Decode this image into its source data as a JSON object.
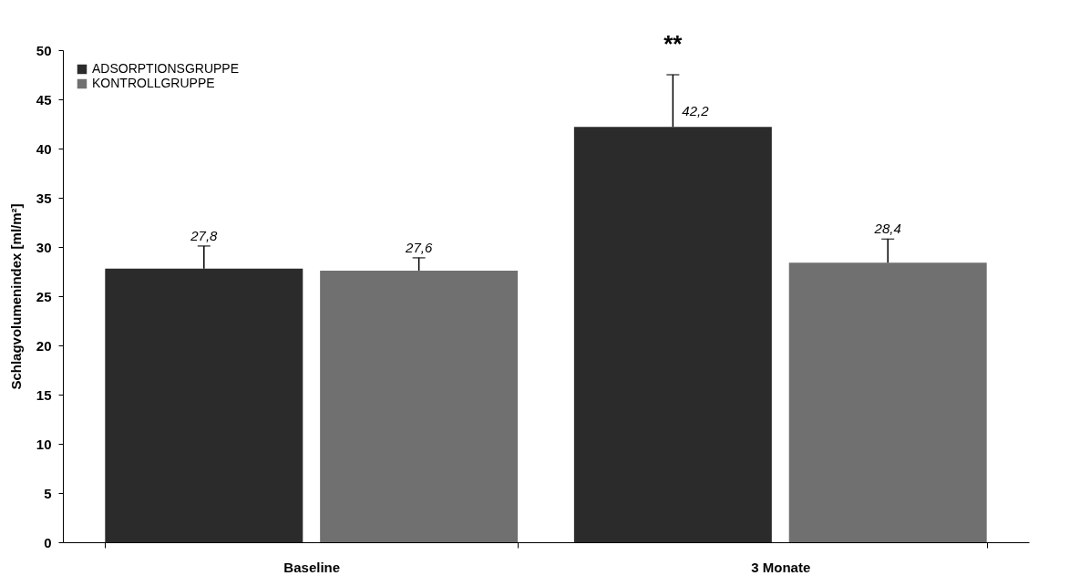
{
  "chart_data": {
    "type": "bar",
    "ylabel": "Schlagvolumenindex [ml/m²]",
    "categories": [
      "Baseline",
      "3 Monate"
    ],
    "series": [
      {
        "name": "ADSORPTIONSGRUPPE",
        "color": "#2b2b2b",
        "values": [
          27.8,
          42.2
        ],
        "errors": [
          [
            27.8,
            30.1
          ],
          [
            42.2,
            47.5
          ]
        ],
        "value_labels": [
          "27,8",
          "42,2"
        ]
      },
      {
        "name": "KONTROLLGRUPPE",
        "color": "#707070",
        "values": [
          27.6,
          28.4
        ],
        "errors": [
          [
            27.6,
            28.9
          ],
          [
            28.4,
            30.8
          ]
        ],
        "value_labels": [
          "27,6",
          "28,4"
        ]
      }
    ],
    "ylim": [
      0,
      50
    ],
    "yticks": [
      0,
      5,
      10,
      15,
      20,
      25,
      30,
      35,
      40,
      45,
      50
    ],
    "grid": false,
    "legend": "top left",
    "annotations": [
      "**"
    ]
  }
}
